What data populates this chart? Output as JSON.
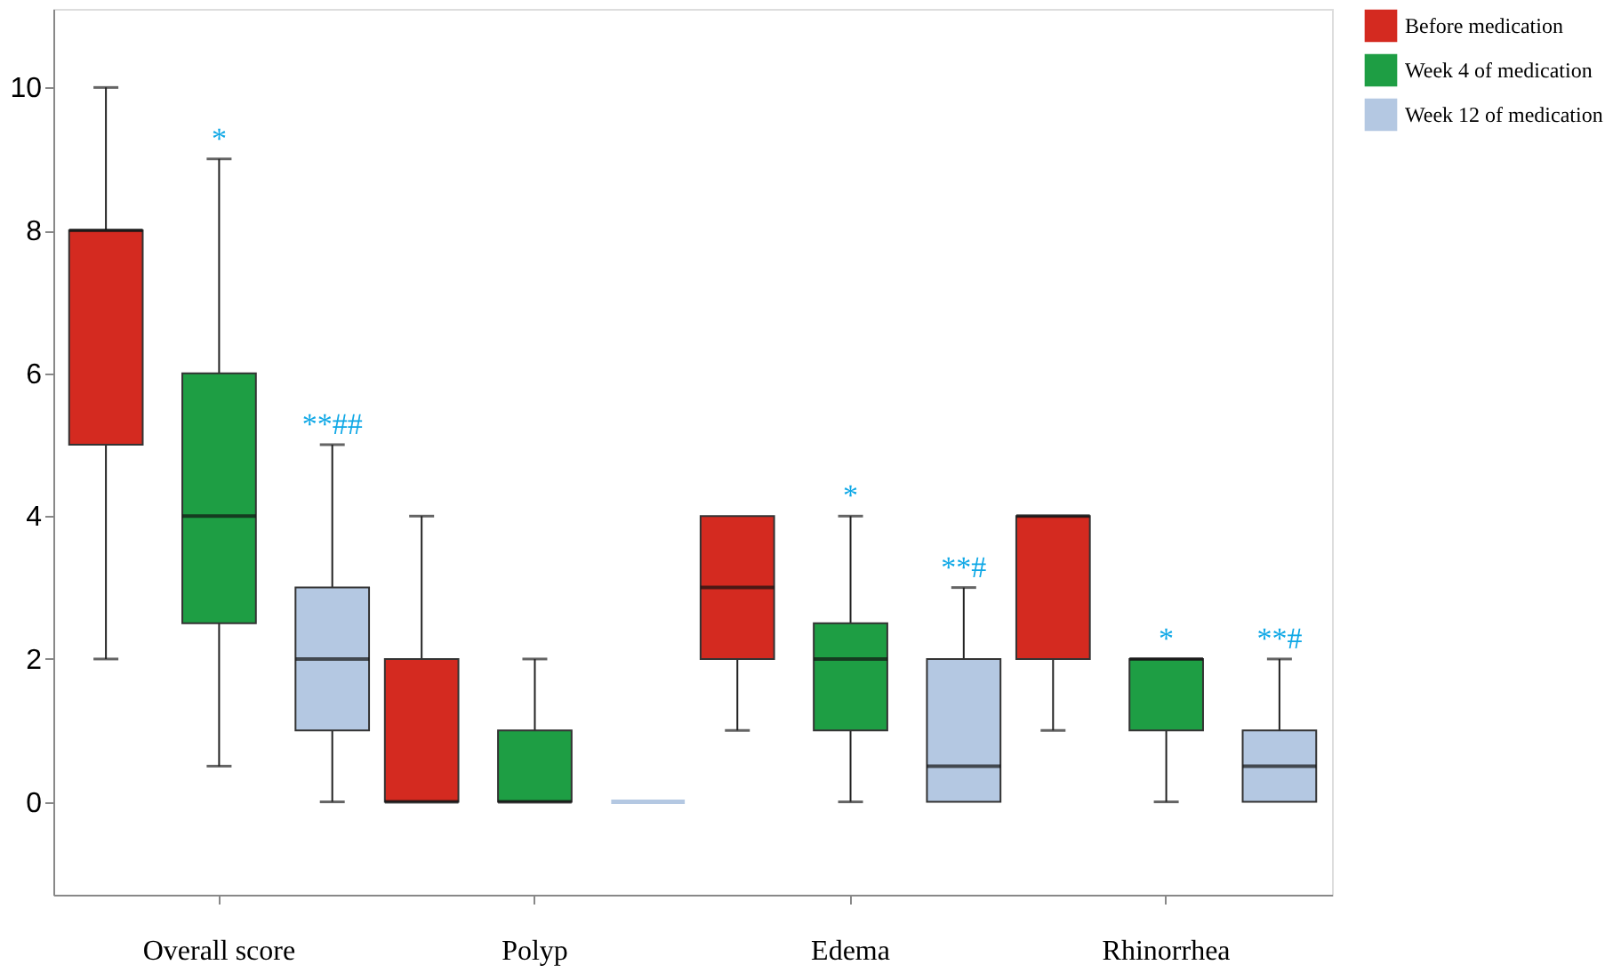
{
  "chart_data": {
    "type": "box",
    "categories": [
      "Overall score",
      "Polyp",
      "Edema",
      "Rhinorrhea"
    ],
    "series": [
      {
        "name": "Before medication",
        "color": "#d42a20",
        "boxes": [
          {
            "low": 2,
            "q1": 5,
            "median": 8,
            "q3": 8,
            "high": 10
          },
          {
            "low": 0,
            "q1": 0,
            "median": 0,
            "q3": 2,
            "high": 4
          },
          {
            "low": 1,
            "q1": 2,
            "median": 3,
            "q3": 4,
            "high": 4
          },
          {
            "low": 1,
            "q1": 2,
            "median": 4,
            "q3": 4,
            "high": 4
          }
        ]
      },
      {
        "name": "Week 4 of medication",
        "color": "#1e9e44",
        "boxes": [
          {
            "low": 0.5,
            "q1": 2.5,
            "median": 4,
            "q3": 6,
            "high": 9
          },
          {
            "low": 0,
            "q1": 0,
            "median": 0,
            "q3": 1,
            "high": 2
          },
          {
            "low": 0,
            "q1": 1,
            "median": 2,
            "q3": 2.5,
            "high": 4
          },
          {
            "low": 0,
            "q1": 1,
            "median": 2,
            "q3": 2,
            "high": 2
          }
        ]
      },
      {
        "name": "Week 12 of medication",
        "color": "#b4c8e2",
        "boxes": [
          {
            "low": 0,
            "q1": 1,
            "median": 2,
            "q3": 3,
            "high": 5
          },
          {
            "low": 0,
            "q1": 0,
            "median": 0,
            "q3": 0,
            "high": 0
          },
          {
            "low": 0,
            "q1": 0,
            "median": 0.5,
            "q3": 2,
            "high": 3
          },
          {
            "low": 0,
            "q1": 0,
            "median": 0.5,
            "q3": 1,
            "high": 2
          }
        ]
      }
    ],
    "ylim": [
      -1.3,
      11.1
    ],
    "yticks": [
      0,
      2,
      4,
      6,
      8,
      10
    ],
    "legend": "top right",
    "grid": false,
    "annotations": [
      {
        "text": "*",
        "x": "Overall score",
        "y": 9
      },
      {
        "text": "**##",
        "x": "Overall score",
        "y": 5
      },
      {
        "text": "*",
        "x": "Edema",
        "y": 4
      },
      "**#",
      {
        "text": "*",
        "x": "Rhinorrhea",
        "y": 2
      },
      "**#"
    ]
  }
}
